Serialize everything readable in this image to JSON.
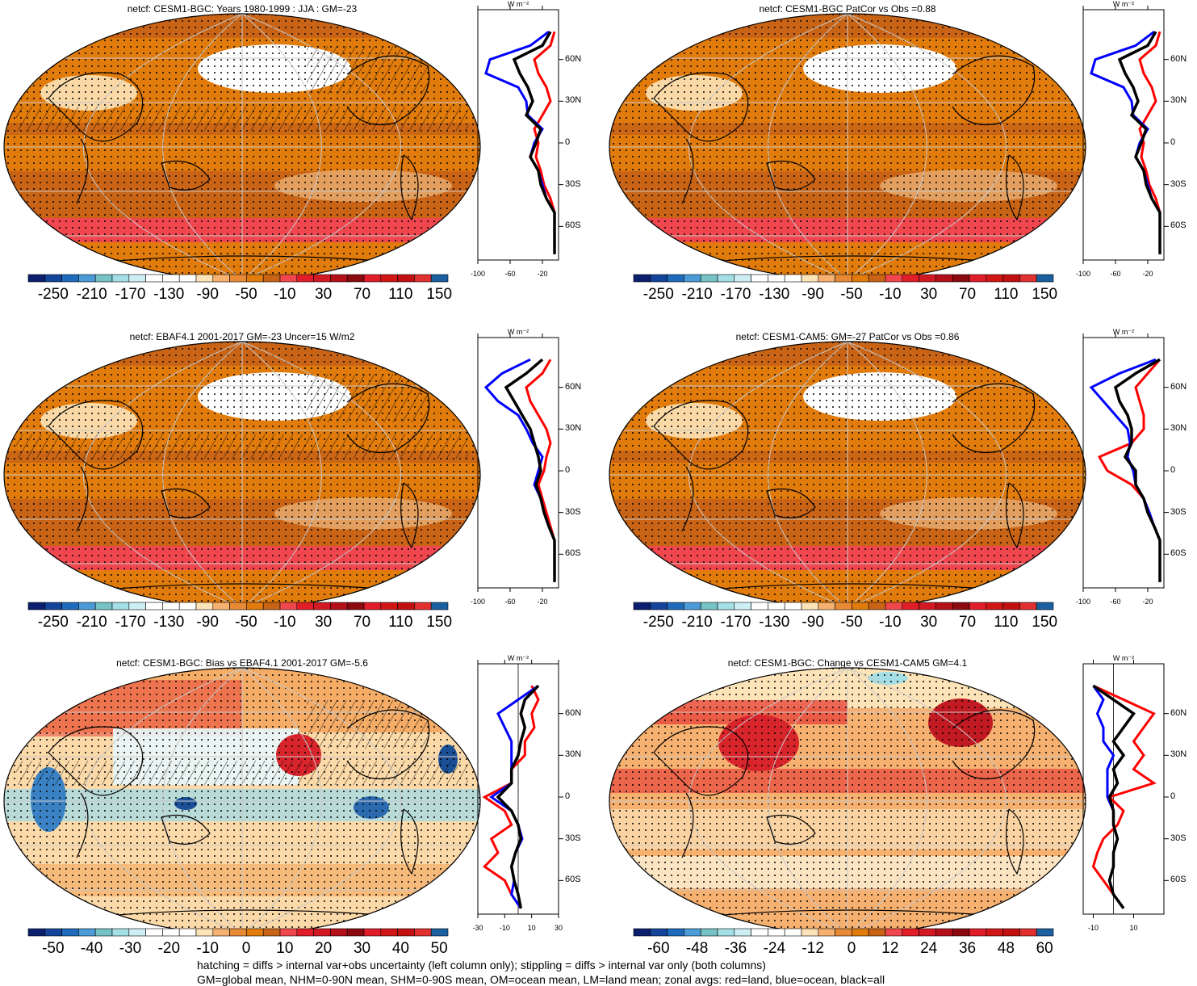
{
  "palette": {
    "ocean_fill": "#e07b0c",
    "ocean_dark": "#c96416",
    "land_fill": "#d9731a",
    "antarctic_band": "#f0474e",
    "light_fill": "#fbd9a8",
    "neg_blue": "#2c6ab0",
    "pos_red": "#e21d2a",
    "grid_line": "#c8c8c8",
    "zonal_land": "#ff0000",
    "zonal_ocean": "#0000ff",
    "zonal_all": "#000000"
  },
  "colorbar_palette": [
    "#0b1f6e",
    "#14449a",
    "#1f6bbb",
    "#4a9bd8",
    "#76c2c4",
    "#a4dfe5",
    "#cdeff4",
    "#ffffff",
    "#ffffff",
    "#ffffff",
    "#fde3b8",
    "#f6b070",
    "#e88a35",
    "#e07b0c",
    "#c96416",
    "#f0474e",
    "#e21d2a",
    "#d21923",
    "#b4101a",
    "#8b0a10",
    "#e21d2a",
    "#d11616",
    "#c21010",
    "#e03030",
    "#1a5fa0"
  ],
  "footer": {
    "line1": "hatching = diffs > internal var+obs uncertainty (left column only); stippling = diffs > internal var only (both columns)",
    "line2": "GM=global mean, NHM=0-90N mean, SHM=0-90S mean, OM=ocean mean, LM=land mean; zonal avgs: red=land, blue=ocean, black=all"
  },
  "panels": [
    {
      "title": "netcf: CESM1-BGC: Years 1980-1999 : JJA : GM=-23",
      "colorbar_labels": [
        "-250",
        "-210",
        "-170",
        "-130",
        "-90",
        "-50",
        "-10",
        "30",
        "70",
        "110",
        "150"
      ],
      "map_style": "abs_bgc",
      "zonal": {
        "unit": "W m⁻²",
        "lat_labels": [
          "60N",
          "30N",
          "0",
          "30S",
          "60S"
        ],
        "x_labels": [
          "-100",
          "-60",
          "-20"
        ],
        "x_range": [
          -100,
          0
        ],
        "lat": [
          80,
          70,
          60,
          50,
          40,
          30,
          20,
          10,
          0,
          -10,
          -20,
          -30,
          -40,
          -50,
          -60,
          -70,
          -80
        ],
        "all": [
          -10,
          -20,
          -55,
          -48,
          -38,
          -32,
          -40,
          -22,
          -28,
          -35,
          -25,
          -22,
          -15,
          -5,
          -5,
          -5,
          -5
        ],
        "ocean": [
          -12,
          -35,
          -85,
          -90,
          -50,
          -40,
          -38,
          -20,
          -30,
          -35,
          -25,
          -20,
          -15,
          -5,
          -5,
          -5,
          -5
        ],
        "land": [
          -5,
          -10,
          -30,
          -25,
          -15,
          -10,
          -20,
          -30,
          -25,
          -28,
          -22,
          -18,
          -10,
          -5,
          -5,
          -5,
          -5
        ]
      }
    },
    {
      "title": "netcf: CESM1-BGC PatCor vs Obs =0.88",
      "colorbar_labels": [
        "-250",
        "-210",
        "-170",
        "-130",
        "-90",
        "-50",
        "-10",
        "30",
        "70",
        "110",
        "150"
      ],
      "map_style": "abs_bgc_noshade",
      "zonal": {
        "unit": "W m⁻²",
        "lat_labels": [
          "60N",
          "30N",
          "0",
          "30S",
          "60S"
        ],
        "x_labels": [
          "-100",
          "-60",
          "-20"
        ],
        "x_range": [
          -100,
          0
        ],
        "lat": [
          80,
          70,
          60,
          50,
          40,
          30,
          20,
          10,
          0,
          -10,
          -20,
          -30,
          -40,
          -50,
          -60,
          -70,
          -80
        ],
        "all": [
          -10,
          -20,
          -55,
          -48,
          -38,
          -32,
          -40,
          -22,
          -28,
          -35,
          -25,
          -22,
          -15,
          -5,
          -5,
          -5,
          -5
        ],
        "ocean": [
          -12,
          -35,
          -85,
          -90,
          -50,
          -40,
          -38,
          -20,
          -30,
          -35,
          -25,
          -20,
          -15,
          -5,
          -5,
          -5,
          -5
        ],
        "land": [
          -5,
          -10,
          -30,
          -25,
          -15,
          -10,
          -20,
          -30,
          -25,
          -28,
          -22,
          -18,
          -10,
          -5,
          -5,
          -5,
          -5
        ]
      }
    },
    {
      "title": "netcf: EBAF4.1 2001-2017 GM=-23 Uncer=15 W/m2",
      "colorbar_labels": [
        "-250",
        "-210",
        "-170",
        "-130",
        "-90",
        "-50",
        "-10",
        "30",
        "70",
        "110",
        "150"
      ],
      "map_style": "abs_obs",
      "zonal": {
        "unit": "W m⁻²",
        "lat_labels": [
          "60N",
          "30N",
          "0",
          "30S",
          "60S"
        ],
        "x_labels": [
          "-100",
          "-60",
          "-20"
        ],
        "x_range": [
          -100,
          0
        ],
        "lat": [
          80,
          70,
          60,
          50,
          40,
          30,
          20,
          10,
          0,
          -10,
          -20,
          -30,
          -40,
          -50,
          -60,
          -70,
          -80
        ],
        "all": [
          -20,
          -40,
          -65,
          -55,
          -45,
          -35,
          -30,
          -25,
          -22,
          -28,
          -22,
          -18,
          -12,
          -5,
          -5,
          -5,
          -5
        ],
        "ocean": [
          -35,
          -70,
          -90,
          -75,
          -50,
          -40,
          -32,
          -20,
          -25,
          -30,
          -22,
          -18,
          -12,
          -5,
          -5,
          -5,
          -5
        ],
        "land": [
          -10,
          -20,
          -40,
          -35,
          -25,
          -15,
          -10,
          -15,
          -18,
          -25,
          -20,
          -15,
          -10,
          -5,
          -5,
          -5,
          -5
        ]
      }
    },
    {
      "title": "netcf: CESM1-CAM5: GM=-27 PatCor vs Obs =0.86",
      "colorbar_labels": [
        "-250",
        "-210",
        "-170",
        "-130",
        "-90",
        "-50",
        "-10",
        "30",
        "70",
        "110",
        "150"
      ],
      "map_style": "abs_cam5",
      "zonal": {
        "unit": "W m⁻²",
        "lat_labels": [
          "60N",
          "30N",
          "0",
          "30S",
          "60S"
        ],
        "x_labels": [
          "-100",
          "-60",
          "-20"
        ],
        "x_range": [
          -100,
          0
        ],
        "lat": [
          80,
          70,
          60,
          50,
          40,
          30,
          20,
          10,
          0,
          -10,
          -20,
          -30,
          -40,
          -50,
          -60,
          -70,
          -80
        ],
        "all": [
          -5,
          -35,
          -60,
          -55,
          -45,
          -40,
          -40,
          -48,
          -35,
          -35,
          -25,
          -20,
          -12,
          -5,
          -5,
          -5,
          -5
        ],
        "ocean": [
          -10,
          -55,
          -90,
          -75,
          -60,
          -45,
          -42,
          -45,
          -38,
          -35,
          -25,
          -18,
          -12,
          -5,
          -5,
          -5,
          -5
        ],
        "land": [
          -5,
          -20,
          -35,
          -30,
          -25,
          -25,
          -40,
          -80,
          -70,
          -40,
          -25,
          -20,
          -12,
          -5,
          -5,
          -5,
          -5
        ]
      }
    },
    {
      "title": "netcf: CESM1-BGC: Bias vs EBAF4.1 2001-2017 GM=-5.6",
      "colorbar_labels": [
        "-50",
        "-40",
        "-30",
        "-20",
        "-10",
        "0",
        "10",
        "20",
        "30",
        "40",
        "50"
      ],
      "map_style": "bias",
      "zonal": {
        "unit": "W m⁻²",
        "lat_labels": [
          "60N",
          "30N",
          "0",
          "30S",
          "60S"
        ],
        "x_labels": [
          "-30",
          "-10",
          "10",
          "30"
        ],
        "x_range": [
          -30,
          30
        ],
        "lat": [
          80,
          70,
          60,
          50,
          40,
          30,
          20,
          10,
          0,
          -10,
          -20,
          -30,
          -40,
          -50,
          -60,
          -70,
          -80
        ],
        "all": [
          15,
          5,
          2,
          5,
          2,
          0,
          -5,
          -5,
          -15,
          -5,
          0,
          2,
          -2,
          -5,
          -3,
          0,
          2
        ],
        "ocean": [
          15,
          0,
          -15,
          -10,
          -5,
          -5,
          -5,
          -5,
          -20,
          -5,
          0,
          3,
          -2,
          -5,
          -3,
          -5,
          2
        ],
        "land": [
          10,
          15,
          10,
          12,
          5,
          5,
          -5,
          -5,
          -25,
          -10,
          -5,
          -20,
          -15,
          -25,
          -10,
          -5,
          2
        ]
      }
    },
    {
      "title": "netcf: CESM1-BGC: Change vs CESM1-CAM5 GM=4.1",
      "colorbar_labels": [
        "-60",
        "-48",
        "-36",
        "-24",
        "-12",
        "0",
        "12",
        "24",
        "36",
        "48",
        "60"
      ],
      "map_style": "change",
      "zonal": {
        "unit": "W m⁻²",
        "lat_labels": [
          "60N",
          "30N",
          "0",
          "30S",
          "60S"
        ],
        "x_labels": [
          "-10",
          "10"
        ],
        "x_range": [
          -15,
          25
        ],
        "lat": [
          80,
          70,
          60,
          50,
          40,
          30,
          20,
          10,
          0,
          -10,
          -20,
          -30,
          -40,
          -50,
          -60,
          -70,
          -80
        ],
        "all": [
          -10,
          0,
          10,
          5,
          0,
          5,
          0,
          2,
          -2,
          0,
          0,
          2,
          0,
          0,
          -2,
          0,
          5
        ],
        "ocean": [
          -10,
          -5,
          -8,
          -5,
          -5,
          0,
          -3,
          -3,
          -3,
          0,
          0,
          2,
          0,
          0,
          -2,
          0,
          5
        ],
        "land": [
          -10,
          5,
          20,
          15,
          10,
          15,
          10,
          20,
          -2,
          5,
          2,
          -5,
          -8,
          -10,
          -5,
          0,
          5
        ]
      }
    }
  ]
}
